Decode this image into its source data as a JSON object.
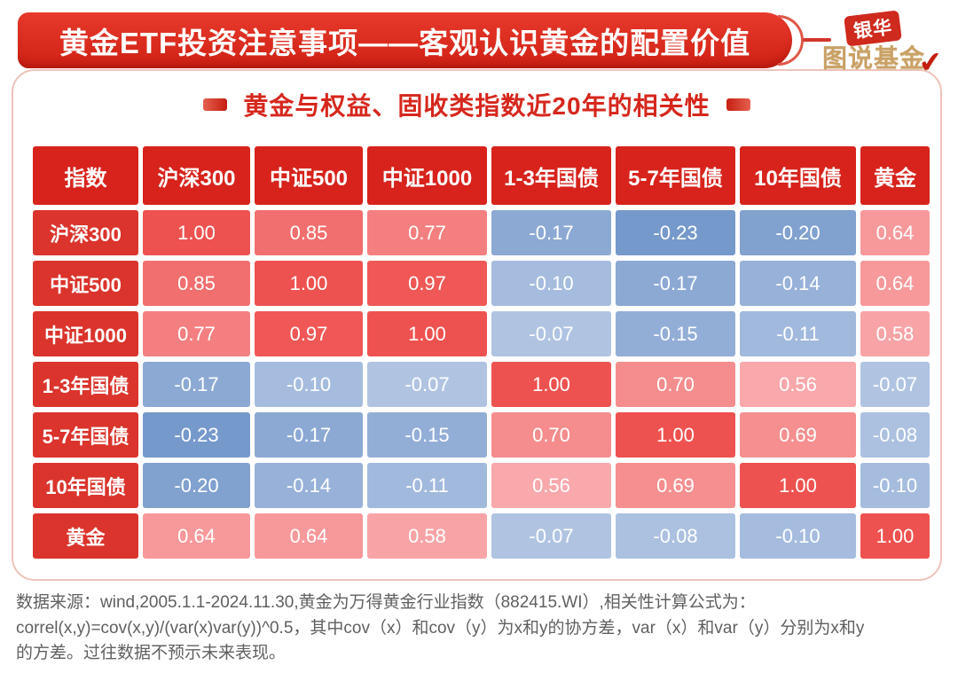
{
  "header": {
    "banner_title": "黄金ETF投资注意事项——客观认识黄金的配置价值",
    "logo_top": "银华",
    "logo_bottom": "图说基金",
    "banner_color": "#d92a1e"
  },
  "subtitle": "黄金与权益、固收类指数近20年的相关性",
  "chart_data": {
    "type": "heatmap",
    "title": "黄金与权益、固收类指数近20年的相关性",
    "corner_label": "指数",
    "columns": [
      "沪深300",
      "中证500",
      "中证1000",
      "1-3年国债",
      "5-7年国债",
      "10年国债",
      "黄金"
    ],
    "rows": [
      "沪深300",
      "中证500",
      "中证1000",
      "1-3年国债",
      "5-7年国债",
      "10年国债",
      "黄金"
    ],
    "values": [
      [
        1.0,
        0.85,
        0.77,
        -0.17,
        -0.23,
        -0.2,
        0.64
      ],
      [
        0.85,
        1.0,
        0.97,
        -0.1,
        -0.17,
        -0.14,
        0.64
      ],
      [
        0.77,
        0.97,
        1.0,
        -0.07,
        -0.15,
        -0.11,
        0.58
      ],
      [
        -0.17,
        -0.1,
        -0.07,
        1.0,
        0.7,
        0.56,
        -0.07
      ],
      [
        -0.23,
        -0.17,
        -0.15,
        0.7,
        1.0,
        0.69,
        -0.08
      ],
      [
        -0.2,
        -0.14,
        -0.11,
        0.56,
        0.69,
        1.0,
        -0.1
      ],
      [
        0.64,
        0.64,
        0.58,
        -0.07,
        -0.08,
        -0.1,
        1.0
      ]
    ],
    "value_format": "0.00",
    "header_color": "#d7231c",
    "row_label_color": "#da342c",
    "color_scale": {
      "positive_low": "#fab4b8",
      "positive_high": "#ee5250",
      "positive_domain": [
        0.5,
        1.0
      ],
      "negative_low": "#c9d6ec",
      "negative_high": "#6f94c8",
      "negative_domain": [
        0.0,
        -0.25
      ]
    }
  },
  "footer": {
    "text": "数据来源：wind,2005.1.1-2024.11.30,黄金为万得黄金行业指数（882415.WI）,相关性计算公式为：\ncorrel(x,y)=cov(x,y)/(var(x)var(y))^0.5，其中cov（x）和cov（y）为x和y的协方差，var（x）和var（y）分别为x和y\n的方差。过往数据不预示未来表现。"
  }
}
